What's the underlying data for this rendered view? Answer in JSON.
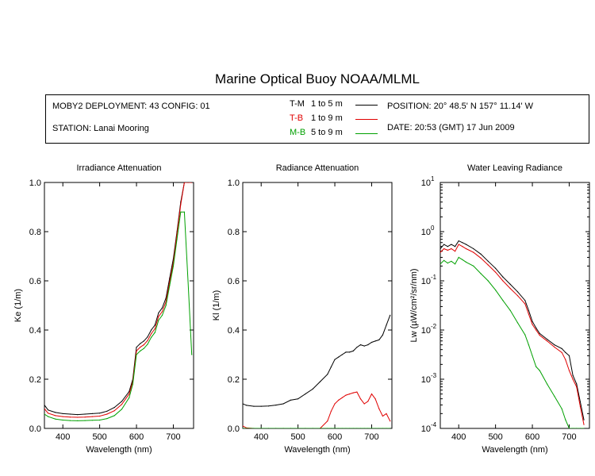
{
  "title": "Marine Optical Buoy NOAA/MLML",
  "info": {
    "deployment": "MOBY2 DEPLOYMENT: 43 CONFIG: 01",
    "station": "STATION: Lanai Mooring",
    "position": "POSITION: 20° 48.5' N   157° 11.14' W",
    "date": "DATE: 20:53 (GMT) 17 Jun 2009",
    "legend": [
      {
        "code": "T-M",
        "range": "1 to 5  m",
        "color": "#000000"
      },
      {
        "code": "T-B",
        "range": "1 to 9  m",
        "color": "#e00000"
      },
      {
        "code": "M-B",
        "range": "5 to 9  m",
        "color": "#00a000"
      }
    ]
  },
  "chart_data": [
    {
      "type": "line",
      "title": "Irradiance Attenuation",
      "xlabel": "Wavelength (nm)",
      "ylabel": "Ke  (1/m)",
      "xlim": [
        350,
        755
      ],
      "ylim": [
        0,
        1.0
      ],
      "xticks": [
        400,
        500,
        600,
        700
      ],
      "yticks": [
        0,
        0.2,
        0.4,
        0.6,
        0.8,
        1.0
      ],
      "ytick_labels": [
        "0.0",
        "0.2",
        "0.4",
        "0.6",
        "0.8",
        "1.0"
      ],
      "x": [
        350,
        360,
        380,
        400,
        420,
        440,
        460,
        480,
        500,
        520,
        540,
        560,
        580,
        590,
        600,
        610,
        620,
        630,
        640,
        650,
        660,
        670,
        680,
        690,
        700,
        710,
        720,
        730,
        740,
        750
      ],
      "series": [
        {
          "name": "T-M",
          "color": "#000000",
          "values": [
            0.095,
            0.075,
            0.065,
            0.06,
            0.058,
            0.056,
            0.058,
            0.06,
            0.062,
            0.07,
            0.085,
            0.11,
            0.15,
            0.2,
            0.33,
            0.345,
            0.355,
            0.372,
            0.4,
            0.42,
            0.47,
            0.49,
            0.53,
            0.61,
            0.69,
            0.8,
            0.92,
            1.02,
            1.05,
            1.04
          ]
        },
        {
          "name": "T-B",
          "color": "#e00000",
          "values": [
            0.08,
            0.062,
            0.052,
            0.048,
            0.046,
            0.045,
            0.046,
            0.048,
            0.05,
            0.058,
            0.072,
            0.098,
            0.14,
            0.19,
            0.315,
            0.33,
            0.34,
            0.357,
            0.385,
            0.405,
            0.455,
            0.475,
            0.515,
            0.595,
            0.675,
            0.79,
            0.91,
            1.01,
            1.02,
            1.01
          ]
        },
        {
          "name": "M-B",
          "color": "#00a000",
          "values": [
            0.058,
            0.048,
            0.038,
            0.034,
            0.032,
            0.031,
            0.032,
            0.033,
            0.034,
            0.04,
            0.052,
            0.078,
            0.125,
            0.18,
            0.3,
            0.315,
            0.325,
            0.342,
            0.37,
            0.39,
            0.44,
            0.46,
            0.5,
            0.58,
            0.66,
            0.77,
            0.88,
            0.88,
            0.6,
            0.3
          ]
        }
      ]
    },
    {
      "type": "line",
      "title": "Radiance Attenuation",
      "xlabel": "Wavelength (nm)",
      "ylabel": "Kl  (1/m)",
      "xlim": [
        350,
        755
      ],
      "ylim": [
        0,
        1.0
      ],
      "xticks": [
        400,
        500,
        600,
        700
      ],
      "yticks": [
        0,
        0.2,
        0.4,
        0.6,
        0.8,
        1.0
      ],
      "ytick_labels": [
        "0.0",
        "0.2",
        "0.4",
        "0.6",
        "0.8",
        "1.0"
      ],
      "x": [
        350,
        360,
        380,
        400,
        420,
        440,
        460,
        480,
        500,
        520,
        540,
        560,
        580,
        590,
        600,
        610,
        620,
        630,
        640,
        650,
        660,
        670,
        680,
        690,
        700,
        710,
        720,
        730,
        740,
        750
      ],
      "series": [
        {
          "name": "T-M",
          "color": "#000000",
          "values": [
            0.1,
            0.094,
            0.09,
            0.09,
            0.091,
            0.095,
            0.1,
            0.115,
            0.12,
            0.14,
            0.16,
            0.19,
            0.22,
            0.25,
            0.28,
            0.29,
            0.3,
            0.31,
            0.31,
            0.315,
            0.33,
            0.34,
            0.335,
            0.34,
            0.35,
            0.355,
            0.36,
            0.38,
            0.42,
            0.46
          ]
        },
        {
          "name": "T-B",
          "color": "#e00000",
          "values": [
            0.01,
            0.002,
            0.0,
            0.0,
            0.0,
            0.0,
            0.0,
            0.0,
            0.0,
            0.0,
            0.0,
            0.0,
            0.03,
            0.07,
            0.1,
            0.115,
            0.125,
            0.135,
            0.14,
            0.145,
            0.148,
            0.12,
            0.1,
            0.11,
            0.14,
            0.12,
            0.08,
            0.05,
            0.06,
            0.03
          ]
        },
        {
          "name": "M-B",
          "color": "#00a000",
          "values": [
            0.0,
            0.0,
            0.0,
            0.0,
            0.0,
            0.0,
            0.0,
            0.0,
            0.0,
            0.0,
            0.0,
            0.0,
            0.0,
            0.0,
            0.0,
            0.0,
            0.0,
            0.0,
            0.0,
            0.0,
            0.0,
            0.0,
            0.0,
            0.0,
            0.0,
            0.0,
            0.0,
            0.0,
            0.0,
            0.0
          ]
        }
      ]
    },
    {
      "type": "line",
      "title": "Water Leaving Radiance",
      "xlabel": "Wavelength (nm)",
      "ylabel": "Lw  (µW/cm²/sr/nm)",
      "scale": "log",
      "xlim": [
        350,
        755
      ],
      "ylim": [
        0.0001,
        10
      ],
      "xticks": [
        400,
        500,
        600,
        700
      ],
      "yticks": [
        0.0001,
        0.001,
        0.01,
        0.1,
        1,
        10
      ],
      "ytick_mantissa": "10",
      "ytick_exponents": [
        "-4",
        "-3",
        "-2",
        "-1",
        "0",
        "1"
      ],
      "x": [
        350,
        360,
        370,
        380,
        390,
        400,
        410,
        420,
        440,
        460,
        480,
        500,
        520,
        540,
        560,
        580,
        590,
        600,
        610,
        620,
        640,
        660,
        680,
        690,
        700,
        710,
        720,
        730,
        740
      ],
      "series": [
        {
          "name": "T-M",
          "color": "#000000",
          "values": [
            0.45,
            0.55,
            0.5,
            0.55,
            0.5,
            0.65,
            0.6,
            0.55,
            0.45,
            0.35,
            0.25,
            0.18,
            0.12,
            0.085,
            0.06,
            0.04,
            0.025,
            0.015,
            0.011,
            0.0085,
            0.0065,
            0.005,
            0.0042,
            0.0035,
            0.003,
            0.0012,
            0.0008,
            0.00035,
            0.00015
          ]
        },
        {
          "name": "T-B",
          "color": "#e00000",
          "values": [
            0.38,
            0.45,
            0.42,
            0.45,
            0.4,
            0.55,
            0.5,
            0.45,
            0.38,
            0.29,
            0.21,
            0.15,
            0.1,
            0.07,
            0.05,
            0.034,
            0.021,
            0.013,
            0.01,
            0.0078,
            0.006,
            0.0045,
            0.0035,
            0.0025,
            0.0015,
            0.001,
            0.0007,
            0.00028,
            0.00012
          ]
        },
        {
          "name": "M-B",
          "color": "#00a000",
          "values": [
            0.22,
            0.26,
            0.23,
            0.25,
            0.22,
            0.3,
            0.27,
            0.24,
            0.2,
            0.14,
            0.1,
            0.065,
            0.04,
            0.025,
            0.014,
            0.008,
            0.005,
            0.003,
            0.0018,
            0.0015,
            0.0008,
            0.00045,
            0.00025,
            0.00015,
            0.0001,
            0.0001,
            0.0001,
            0.0001,
            0.0001
          ]
        }
      ]
    }
  ]
}
